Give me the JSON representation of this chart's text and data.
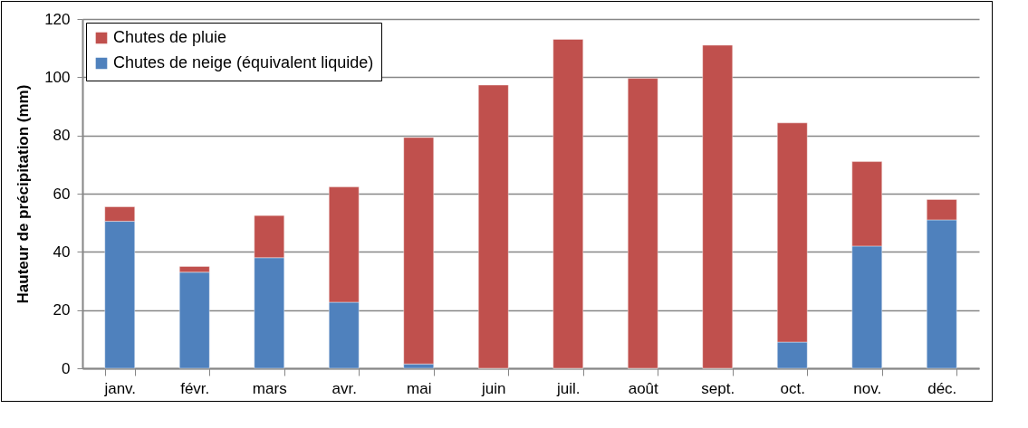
{
  "chart_data": {
    "type": "bar",
    "stacked": true,
    "ylabel": "Hauteur de précipitation (mm)",
    "categories": [
      "janv.",
      "févr.",
      "mars",
      "avr.",
      "mai",
      "juin",
      "juil.",
      "août",
      "sept.",
      "oct.",
      "nov.",
      "déc."
    ],
    "series": [
      {
        "name": "Chutes de neige (équivalent liquide)",
        "color": "#4f81bd",
        "values": [
          50.5,
          33,
          38,
          22.7,
          1.5,
          0,
          0,
          0,
          0,
          9,
          42,
          51
        ]
      },
      {
        "name": "Chutes de pluie",
        "color": "#c0504d",
        "values": [
          5,
          2,
          14.5,
          39.6,
          77.8,
          97.3,
          113,
          99.6,
          111,
          75.3,
          29,
          7
        ]
      }
    ],
    "ylim": [
      0,
      120
    ],
    "yticks": [
      0,
      20,
      40,
      60,
      80,
      100,
      120
    ],
    "grid": "y",
    "legend": "top left"
  }
}
